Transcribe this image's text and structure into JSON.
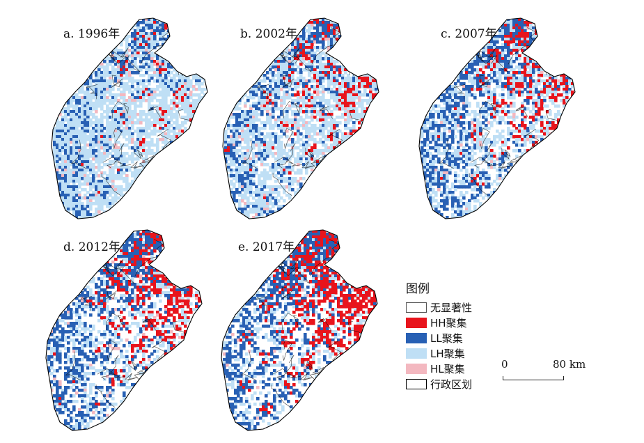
{
  "panels": [
    {
      "id": "a",
      "label": "a. 1996年",
      "mix": {
        "HH": 0.12,
        "LL": 0.3,
        "LH": 0.34,
        "HL": 0.05
      }
    },
    {
      "id": "b",
      "label": "b. 2002年",
      "mix": {
        "HH": 0.2,
        "LL": 0.28,
        "LH": 0.27,
        "HL": 0.04
      }
    },
    {
      "id": "c",
      "label": "c. 2007年",
      "mix": {
        "HH": 0.22,
        "LL": 0.36,
        "LH": 0.17,
        "HL": 0.02
      }
    },
    {
      "id": "d",
      "label": "d. 2012年",
      "mix": {
        "HH": 0.26,
        "LL": 0.34,
        "LH": 0.11,
        "HL": 0.02
      }
    },
    {
      "id": "e",
      "label": "e. 2017年",
      "mix": {
        "HH": 0.3,
        "LL": 0.34,
        "LH": 0.08,
        "HL": 0.01
      }
    }
  ],
  "legend": {
    "title": "图例",
    "items": [
      {
        "key": "none",
        "label": "无显著性",
        "color": "#ffffff",
        "border": "#555555"
      },
      {
        "key": "HH",
        "label": "HH聚集",
        "color": "#e8141c",
        "border": "#e8141c"
      },
      {
        "key": "LL",
        "label": "LL聚集",
        "color": "#2860b4",
        "border": "#2860b4"
      },
      {
        "key": "LH",
        "label": "LH聚集",
        "color": "#bfdff5",
        "border": "#bfdff5"
      },
      {
        "key": "HL",
        "label": "HL聚集",
        "color": "#f3b8c0",
        "border": "#f3b8c0"
      },
      {
        "key": "admin",
        "label": "行政区划",
        "color": "#ffffff",
        "border": "#000000"
      }
    ]
  },
  "scale": {
    "zero": "0",
    "end": "80 km"
  },
  "colors": {
    "HH": "#e8141c",
    "LL": "#2860b4",
    "LH": "#bfdff5",
    "HL": "#f3b8c0",
    "none": "#ffffff",
    "admin": "#000000"
  }
}
